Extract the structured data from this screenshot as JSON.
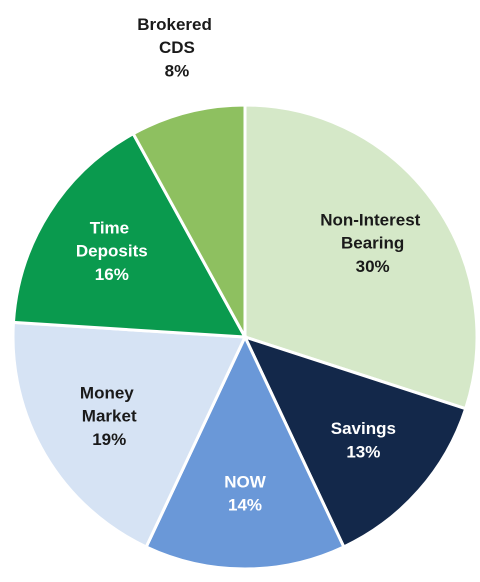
{
  "chart_data": {
    "type": "pie",
    "categories": [
      "Non-Interest Bearing",
      "Savings",
      "NOW",
      "Money Market",
      "Time Deposits",
      "Brokered CDS"
    ],
    "values": [
      30,
      13,
      14,
      19,
      16,
      8
    ],
    "value_labels": [
      "30%",
      "13%",
      "14%",
      "19%",
      "16%",
      "8%"
    ],
    "colors": [
      "#d5e8c8",
      "#13284a",
      "#6a98d8",
      "#d6e3f4",
      "#0a9a4e",
      "#8ec060"
    ],
    "label_colors": [
      "#1a1a1a",
      "#ffffff",
      "#ffffff",
      "#1a1a1a",
      "#ffffff",
      "#1a1a1a"
    ]
  }
}
